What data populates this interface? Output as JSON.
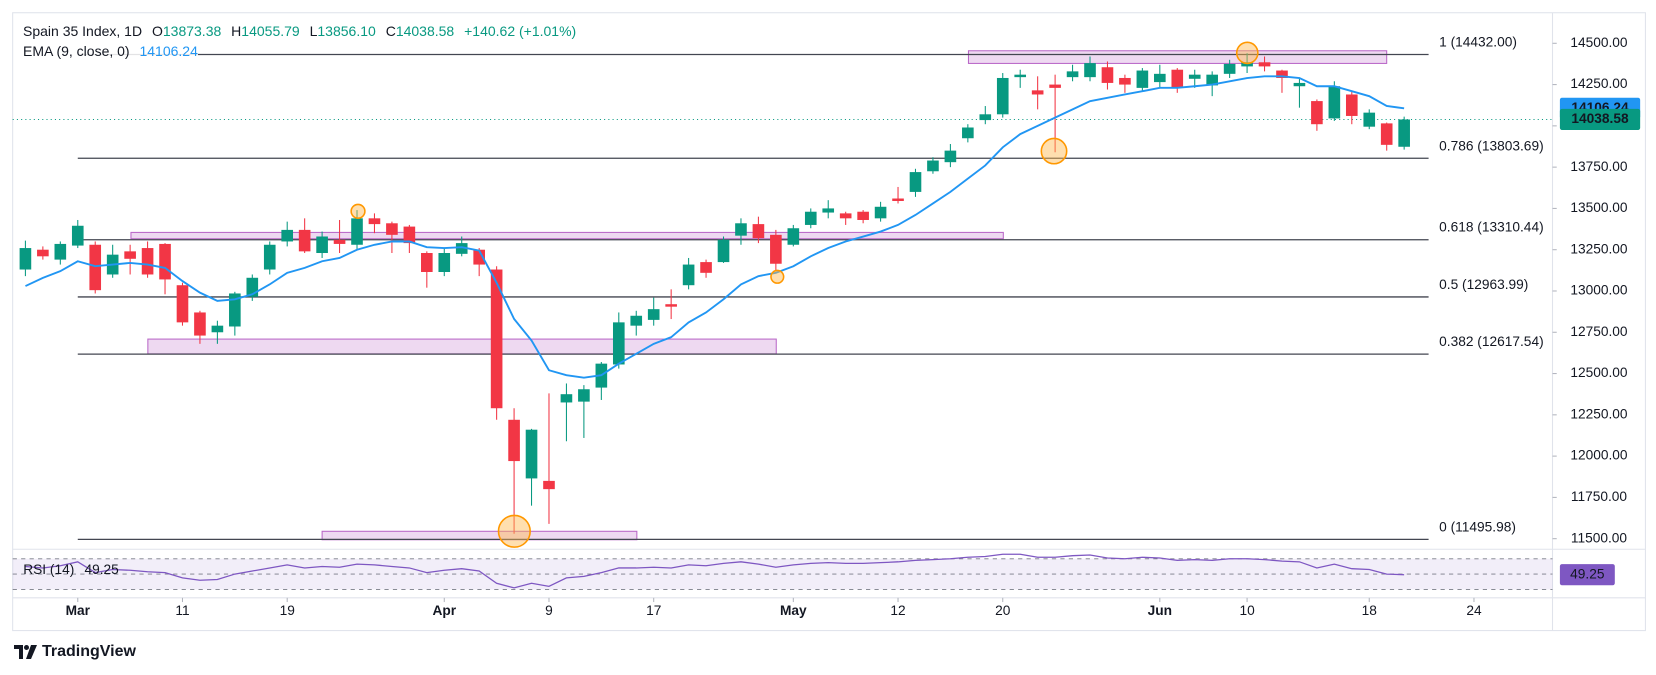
{
  "header": {
    "title": "Spain 35 Index, 1D",
    "ohlc": [
      {
        "key": "O",
        "value": "13873.38"
      },
      {
        "key": "H",
        "value": "14055.79"
      },
      {
        "key": "L",
        "value": "13856.10"
      },
      {
        "key": "C",
        "value": "14038.58"
      }
    ],
    "change": "+140.62 (+1.01%)"
  },
  "chart_data": {
    "type": "candlestick",
    "xlim": [
      -0.73,
      87.5
    ],
    "xticks": [
      {
        "value": 3,
        "label": "Mar"
      },
      {
        "value": 9,
        "label": "11"
      },
      {
        "value": 15,
        "label": "19"
      },
      {
        "value": 24,
        "label": "Apr"
      },
      {
        "value": 30,
        "label": "9"
      },
      {
        "value": 36,
        "label": "17"
      },
      {
        "value": 44,
        "label": "May"
      },
      {
        "value": 50,
        "label": "12"
      },
      {
        "value": 56,
        "label": "20"
      },
      {
        "value": 65,
        "label": "Jun"
      },
      {
        "value": 70,
        "label": "10"
      },
      {
        "value": 77,
        "label": "18"
      },
      {
        "value": 83,
        "label": "24"
      }
    ],
    "ylim": [
      11436,
      14685
    ],
    "yticks": [
      {
        "value": 11500,
        "label": "11500.00"
      },
      {
        "value": 11750,
        "label": "11750.00"
      },
      {
        "value": 12000,
        "label": "12000.00"
      },
      {
        "value": 12250,
        "label": "12250.00"
      },
      {
        "value": 12500,
        "label": "12500.00"
      },
      {
        "value": 12750,
        "label": "12750.00"
      },
      {
        "value": 13000,
        "label": "13000.00"
      },
      {
        "value": 13250,
        "label": "13250.00"
      },
      {
        "value": 13500,
        "label": "13500.00"
      },
      {
        "value": 13750,
        "label": "13750.00"
      },
      {
        "value": 14000,
        "label": "14000.00"
      },
      {
        "value": 14250,
        "label": "14250.00"
      },
      {
        "value": 14500,
        "label": "14500.00"
      }
    ],
    "up_color": "#089981",
    "down_color": "#f23645",
    "candles": {
      "open": [
        13130,
        13250,
        13190,
        13275,
        13280,
        13100,
        13240,
        13260,
        13285,
        13035,
        12870,
        12750,
        12785,
        12965,
        13130,
        13300,
        13370,
        13230,
        13310,
        13280,
        13440,
        13410,
        13390,
        13230,
        13115,
        13225,
        13250,
        13130,
        12220,
        11865,
        11850,
        12325,
        12330,
        12415,
        12555,
        12790,
        12825,
        12920,
        13035,
        13175,
        13175,
        13335,
        13405,
        13340,
        13280,
        13400,
        13475,
        13470,
        13480,
        13440,
        13560,
        13600,
        13725,
        13780,
        13925,
        14035,
        14070,
        14295,
        14215,
        14250,
        14295,
        14295,
        14355,
        14290,
        14230,
        14265,
        14340,
        14285,
        14245,
        14315,
        14360,
        14385,
        14335,
        14240,
        14150,
        14045,
        14190,
        13995,
        14015,
        13873.38
      ],
      "high": [
        13305,
        13270,
        13300,
        13430,
        13300,
        13280,
        13280,
        13300,
        13290,
        13050,
        12880,
        12820,
        12995,
        13100,
        13300,
        13420,
        13440,
        13360,
        13430,
        13490,
        13470,
        13420,
        13400,
        13240,
        13260,
        13330,
        13260,
        13150,
        12290,
        12165,
        12380,
        12440,
        12430,
        12570,
        12870,
        12880,
        12960,
        13010,
        13200,
        13190,
        13330,
        13440,
        13450,
        13370,
        13400,
        13500,
        13550,
        13480,
        13490,
        13540,
        13630,
        13740,
        13810,
        13890,
        14010,
        14120,
        14320,
        14340,
        14300,
        14310,
        14370,
        14420,
        14390,
        14310,
        14350,
        14370,
        14350,
        14340,
        14330,
        14400,
        14440,
        14420,
        14340,
        14290,
        14160,
        14270,
        14210,
        14100,
        14020,
        14055.79
      ],
      "low": [
        13090,
        13190,
        13160,
        13260,
        12985,
        13080,
        13100,
        13080,
        12980,
        12790,
        12680,
        12680,
        12730,
        12940,
        13100,
        13270,
        13230,
        13200,
        13230,
        13250,
        13350,
        13230,
        13230,
        13020,
        13090,
        13210,
        13090,
        12220,
        11530,
        11700,
        11590,
        12090,
        12110,
        12340,
        12530,
        12730,
        12790,
        12830,
        13010,
        13080,
        13170,
        13280,
        13290,
        13120,
        13270,
        13380,
        13440,
        13400,
        13410,
        13420,
        13530,
        13570,
        13710,
        13750,
        13900,
        14010,
        14050,
        14230,
        14100,
        13840,
        14270,
        14270,
        14220,
        14200,
        14210,
        14230,
        14200,
        14230,
        14180,
        14290,
        14320,
        14330,
        14200,
        14110,
        13970,
        14030,
        14010,
        13980,
        13850,
        13856.1
      ],
      "close": [
        13260,
        13210,
        13285,
        13395,
        13005,
        13220,
        13195,
        13100,
        13070,
        12810,
        12730,
        12790,
        12985,
        13080,
        13280,
        13370,
        13240,
        13330,
        13285,
        13440,
        13405,
        13340,
        13290,
        13115,
        13230,
        13290,
        13160,
        12290,
        11970,
        12160,
        11800,
        12375,
        12405,
        12560,
        12810,
        12850,
        12890,
        12905,
        13160,
        13110,
        13310,
        13410,
        13320,
        13165,
        13380,
        13480,
        13500,
        13440,
        13430,
        13510,
        13545,
        13720,
        13790,
        13850,
        13990,
        14070,
        14290,
        14310,
        14190,
        14230,
        14330,
        14380,
        14260,
        14250,
        14335,
        14315,
        14235,
        14310,
        14310,
        14375,
        14385,
        14360,
        14290,
        14260,
        14010,
        14240,
        14060,
        14080,
        13885,
        14038.58
      ]
    },
    "ema": {
      "name": "EMA (9, close, 0)",
      "value_label": "14106.24",
      "color": "#2196f3",
      "values": [
        13030,
        13080,
        13120,
        13180,
        13150,
        13160,
        13170,
        13160,
        13140,
        13060,
        12990,
        12940,
        12950,
        12980,
        13040,
        13110,
        13140,
        13180,
        13200,
        13250,
        13280,
        13300,
        13300,
        13265,
        13260,
        13265,
        13245,
        13050,
        12830,
        12700,
        12520,
        12490,
        12475,
        12490,
        12560,
        12620,
        12680,
        12720,
        12810,
        12870,
        12950,
        13040,
        13090,
        13110,
        13150,
        13210,
        13260,
        13300,
        13330,
        13360,
        13400,
        13460,
        13530,
        13600,
        13680,
        13760,
        13870,
        13950,
        14000,
        14050,
        14100,
        14150,
        14170,
        14190,
        14210,
        14230,
        14230,
        14240,
        14250,
        14270,
        14290,
        14300,
        14300,
        14290,
        14240,
        14240,
        14210,
        14180,
        14120,
        14106.24
      ]
    },
    "fib_color": "#434651",
    "fib_levels": [
      {
        "label": "1 (14432.00)",
        "value": 14432
      },
      {
        "label": "0.786 (13803.69)",
        "value": 13803.69
      },
      {
        "label": "0.618 (13310.44)",
        "value": 13310.44
      },
      {
        "label": "0.5 (12963.99)",
        "value": 12963.99
      },
      {
        "label": "0.382 (12617.54)",
        "value": 12617.54
      },
      {
        "label": "0 (11495.98)",
        "value": 11495.98
      }
    ],
    "rsi": {
      "name": "RSI (14)",
      "value_label": "49.25",
      "color": "#7e57c2",
      "ylim": [
        24.5,
        79.7
      ],
      "levels": [
        30,
        50,
        70
      ],
      "values": [
        60,
        58,
        61,
        66,
        52,
        56,
        55,
        53,
        52,
        45,
        42,
        43,
        50,
        54,
        58,
        62,
        58,
        60,
        59,
        63,
        62,
        60,
        58,
        52,
        55,
        57,
        54,
        38,
        32,
        38,
        34,
        45,
        47,
        52,
        58,
        58,
        59,
        58,
        62,
        61,
        64,
        66,
        63,
        59,
        62,
        64,
        65,
        64,
        64,
        65,
        66,
        68,
        69,
        70,
        72,
        73,
        76,
        76,
        72,
        72,
        74,
        75,
        71,
        70,
        72,
        71,
        68,
        69,
        68,
        70,
        70,
        69,
        67,
        66,
        58,
        63,
        57,
        56,
        50,
        49.25
      ]
    }
  },
  "footer": {
    "brand": "TradingView"
  }
}
